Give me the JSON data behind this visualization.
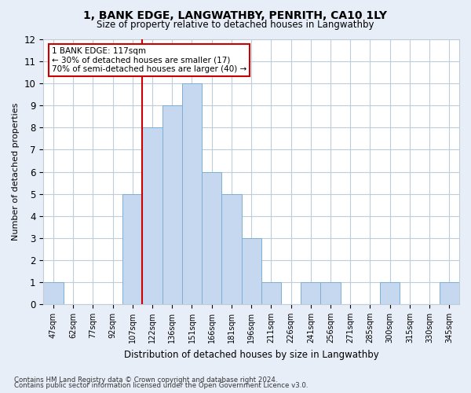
{
  "title1": "1, BANK EDGE, LANGWATHBY, PENRITH, CA10 1LY",
  "title2": "Size of property relative to detached houses in Langwathby",
  "xlabel": "Distribution of detached houses by size in Langwathby",
  "ylabel": "Number of detached properties",
  "categories": [
    "47sqm",
    "62sqm",
    "77sqm",
    "92sqm",
    "107sqm",
    "122sqm",
    "136sqm",
    "151sqm",
    "166sqm",
    "181sqm",
    "196sqm",
    "211sqm",
    "226sqm",
    "241sqm",
    "256sqm",
    "271sqm",
    "285sqm",
    "300sqm",
    "315sqm",
    "330sqm",
    "345sqm"
  ],
  "values": [
    1,
    0,
    0,
    0,
    5,
    8,
    9,
    10,
    6,
    5,
    3,
    1,
    0,
    1,
    1,
    0,
    0,
    1,
    0,
    0,
    1
  ],
  "bar_color": "#c5d8f0",
  "bar_edge_color": "#7aafd4",
  "red_line_index": 5,
  "annotation_text": "1 BANK EDGE: 117sqm\n← 30% of detached houses are smaller (17)\n70% of semi-detached houses are larger (40) →",
  "annotation_box_color": "#ffffff",
  "annotation_box_edge": "#cc0000",
  "ylim": [
    0,
    12
  ],
  "yticks": [
    0,
    1,
    2,
    3,
    4,
    5,
    6,
    7,
    8,
    9,
    10,
    11,
    12
  ],
  "footer1": "Contains HM Land Registry data © Crown copyright and database right 2024.",
  "footer2": "Contains public sector information licensed under the Open Government Licence v3.0.",
  "bg_color": "#e8eef8",
  "plot_bg_color": "#ffffff",
  "grid_color": "#c0ccd8"
}
